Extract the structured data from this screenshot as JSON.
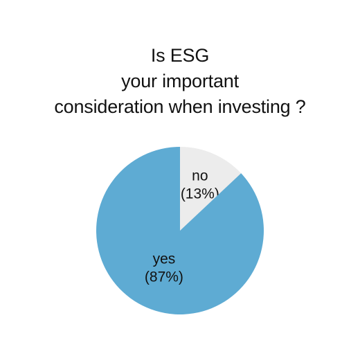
{
  "chart_data": {
    "type": "pie",
    "title_lines": [
      "Is ESG",
      "your important",
      "consideration when investing ?"
    ],
    "slices": [
      {
        "label": "no",
        "percent_label": "(13%)",
        "value": 13,
        "color": "#ececec"
      },
      {
        "label": "yes",
        "percent_label": "(87%)",
        "value": 87,
        "color": "#5eabd3"
      }
    ],
    "start": "12 o'clock",
    "direction": "clockwise",
    "legend": "none",
    "label_color": "#111111"
  }
}
